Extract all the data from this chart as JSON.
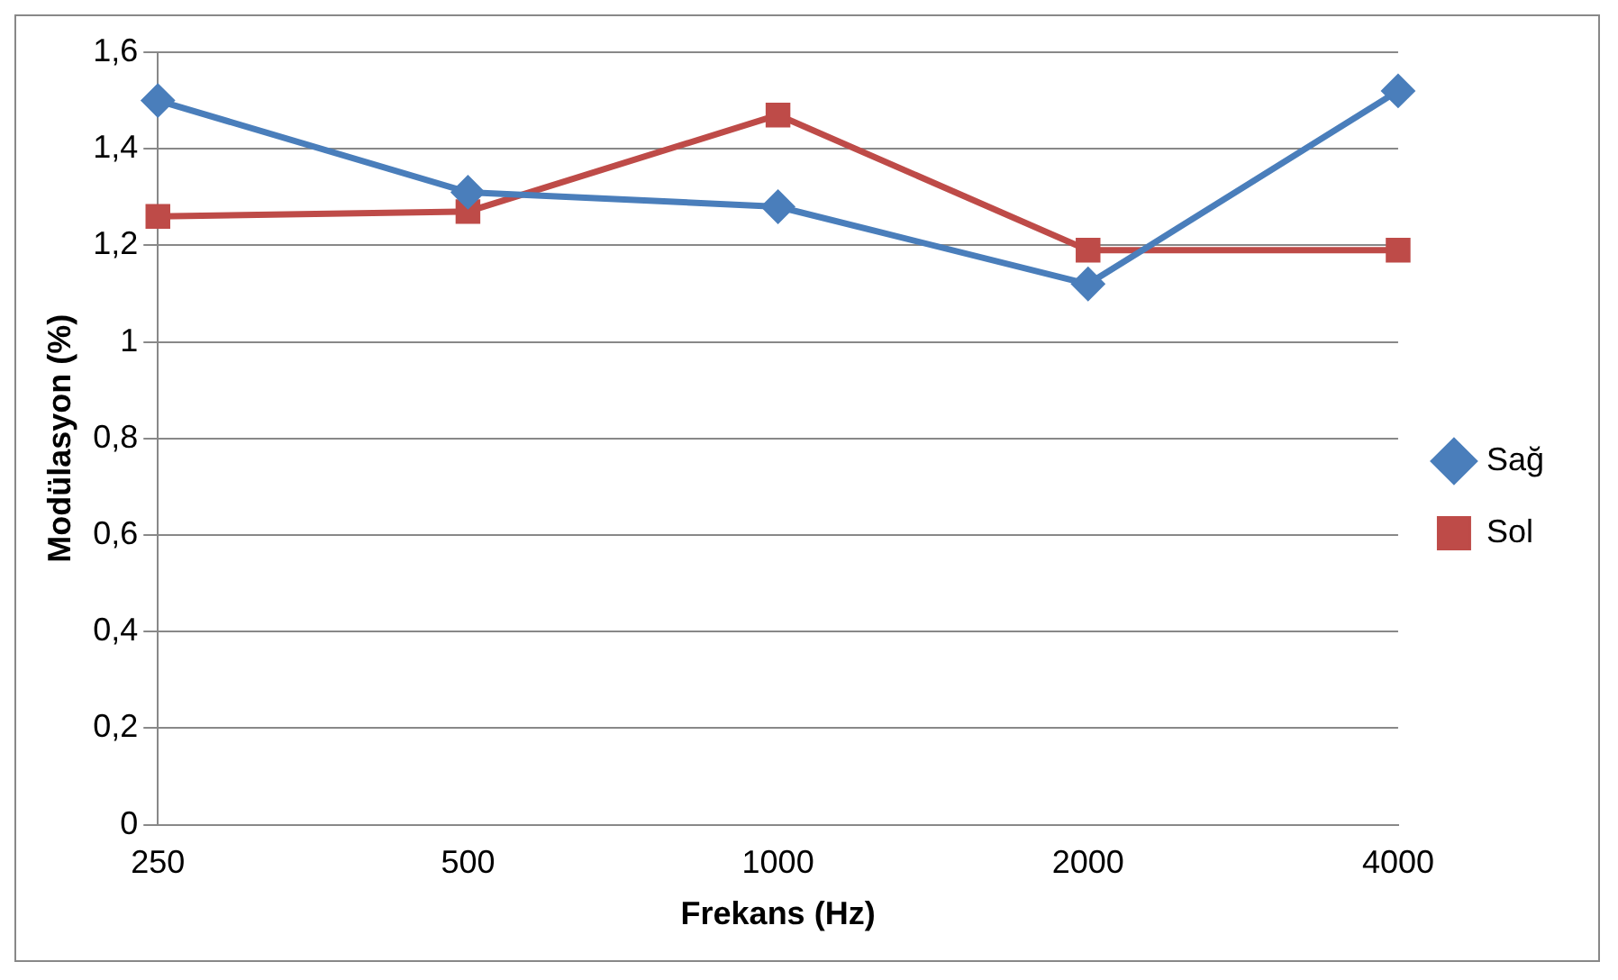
{
  "chart_data": {
    "type": "line",
    "xlabel": "Frekans (Hz)",
    "ylabel": "Modülasyon (%)",
    "categories": [
      "250",
      "500",
      "1000",
      "2000",
      "4000"
    ],
    "series": [
      {
        "name": "Sağ",
        "color": "#4a7ebb",
        "values": [
          1.5,
          1.31,
          1.28,
          1.12,
          1.52
        ],
        "marker": "diamond"
      },
      {
        "name": "Sol",
        "color": "#be4b48",
        "values": [
          1.26,
          1.27,
          1.47,
          1.19,
          1.19
        ],
        "marker": "square"
      }
    ],
    "ylim": [
      0,
      1.6
    ],
    "yticks": [
      0,
      {
        "value": 0.2,
        "label": "0,2"
      },
      {
        "value": 0.4,
        "label": "0,4"
      },
      {
        "value": 0.6,
        "label": "0,6"
      },
      {
        "value": 0.8,
        "label": "0,8"
      },
      1,
      {
        "value": 1.2,
        "label": "1,2"
      },
      {
        "value": 1.4,
        "label": "1,4"
      },
      {
        "value": 1.6,
        "label": "1,6"
      }
    ],
    "grid": "y",
    "legend": "right",
    "line_style": "solid"
  }
}
